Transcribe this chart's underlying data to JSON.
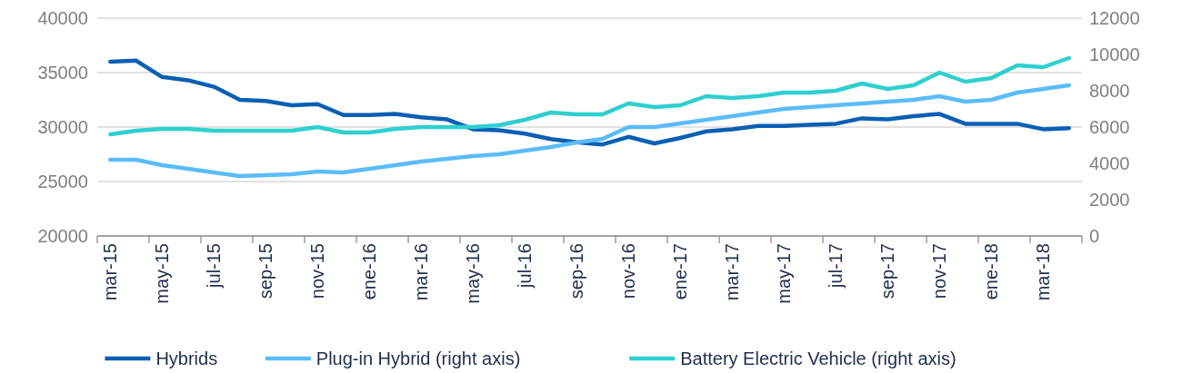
{
  "chart_data": {
    "type": "line",
    "categories": [
      "mar-15",
      null,
      "may-15",
      null,
      "jul-15",
      null,
      "sep-15",
      null,
      "nov-15",
      null,
      "ene-16",
      null,
      "mar-16",
      null,
      "may-16",
      null,
      "jul-16",
      null,
      "sep-16",
      null,
      "nov-16",
      null,
      "ene-17",
      null,
      "mar-17",
      null,
      "may-17",
      null,
      "jul-17",
      null,
      "sep-17",
      null,
      "nov-17",
      null,
      "ene-18",
      null,
      "mar-18",
      null
    ],
    "series": [
      {
        "name": "Hybrids",
        "color": "#0b5fb4",
        "values": [
          36000,
          36100,
          34600,
          34300,
          33700,
          32500,
          32400,
          32000,
          32100,
          31100,
          31100,
          31200,
          30900,
          30700,
          29800,
          29700,
          29400,
          28900,
          28600,
          28400,
          29100,
          28500,
          29000,
          29600,
          29800,
          30100,
          30100,
          30200,
          30300,
          30800,
          30700,
          31000,
          31200,
          30300,
          30300,
          30300,
          29800,
          29900
        ]
      },
      {
        "name": "Plug-in Hybrid (right axis)",
        "color": "#5bbcf9",
        "axis": "y2",
        "values": [
          4200,
          4200,
          3900,
          3700,
          3500,
          3300,
          3350,
          3400,
          3550,
          3500,
          3700,
          3900,
          4100,
          4250,
          4400,
          4500,
          4700,
          4900,
          5150,
          5350,
          6000,
          6000,
          6200,
          6400,
          6600,
          6800,
          7000,
          7100,
          7200,
          7300,
          7400,
          7500,
          7700,
          7400,
          7500,
          7900,
          8100,
          8300
        ]
      },
      {
        "name": "Battery Electric Vehicle (right axis)",
        "color": "#2ecfcf",
        "axis": "y2",
        "values": [
          5600,
          5800,
          5900,
          5900,
          5800,
          5800,
          5800,
          5800,
          6000,
          5700,
          5700,
          5900,
          6000,
          6000,
          6000,
          6100,
          6400,
          6800,
          6700,
          6700,
          7300,
          7100,
          7200,
          7700,
          7600,
          7700,
          7900,
          7900,
          8000,
          8400,
          8100,
          8300,
          9000,
          8500,
          8700,
          9400,
          9300,
          9800
        ]
      }
    ],
    "ylim": [
      20000,
      40000
    ],
    "yticks": [
      20000,
      25000,
      30000,
      35000,
      40000
    ],
    "y2lim": [
      0,
      12000
    ],
    "y2ticks": [
      0,
      2000,
      4000,
      6000,
      8000,
      10000,
      12000
    ],
    "grid": "y",
    "legend": "bottom",
    "marker": "none",
    "line_style": "solid"
  }
}
